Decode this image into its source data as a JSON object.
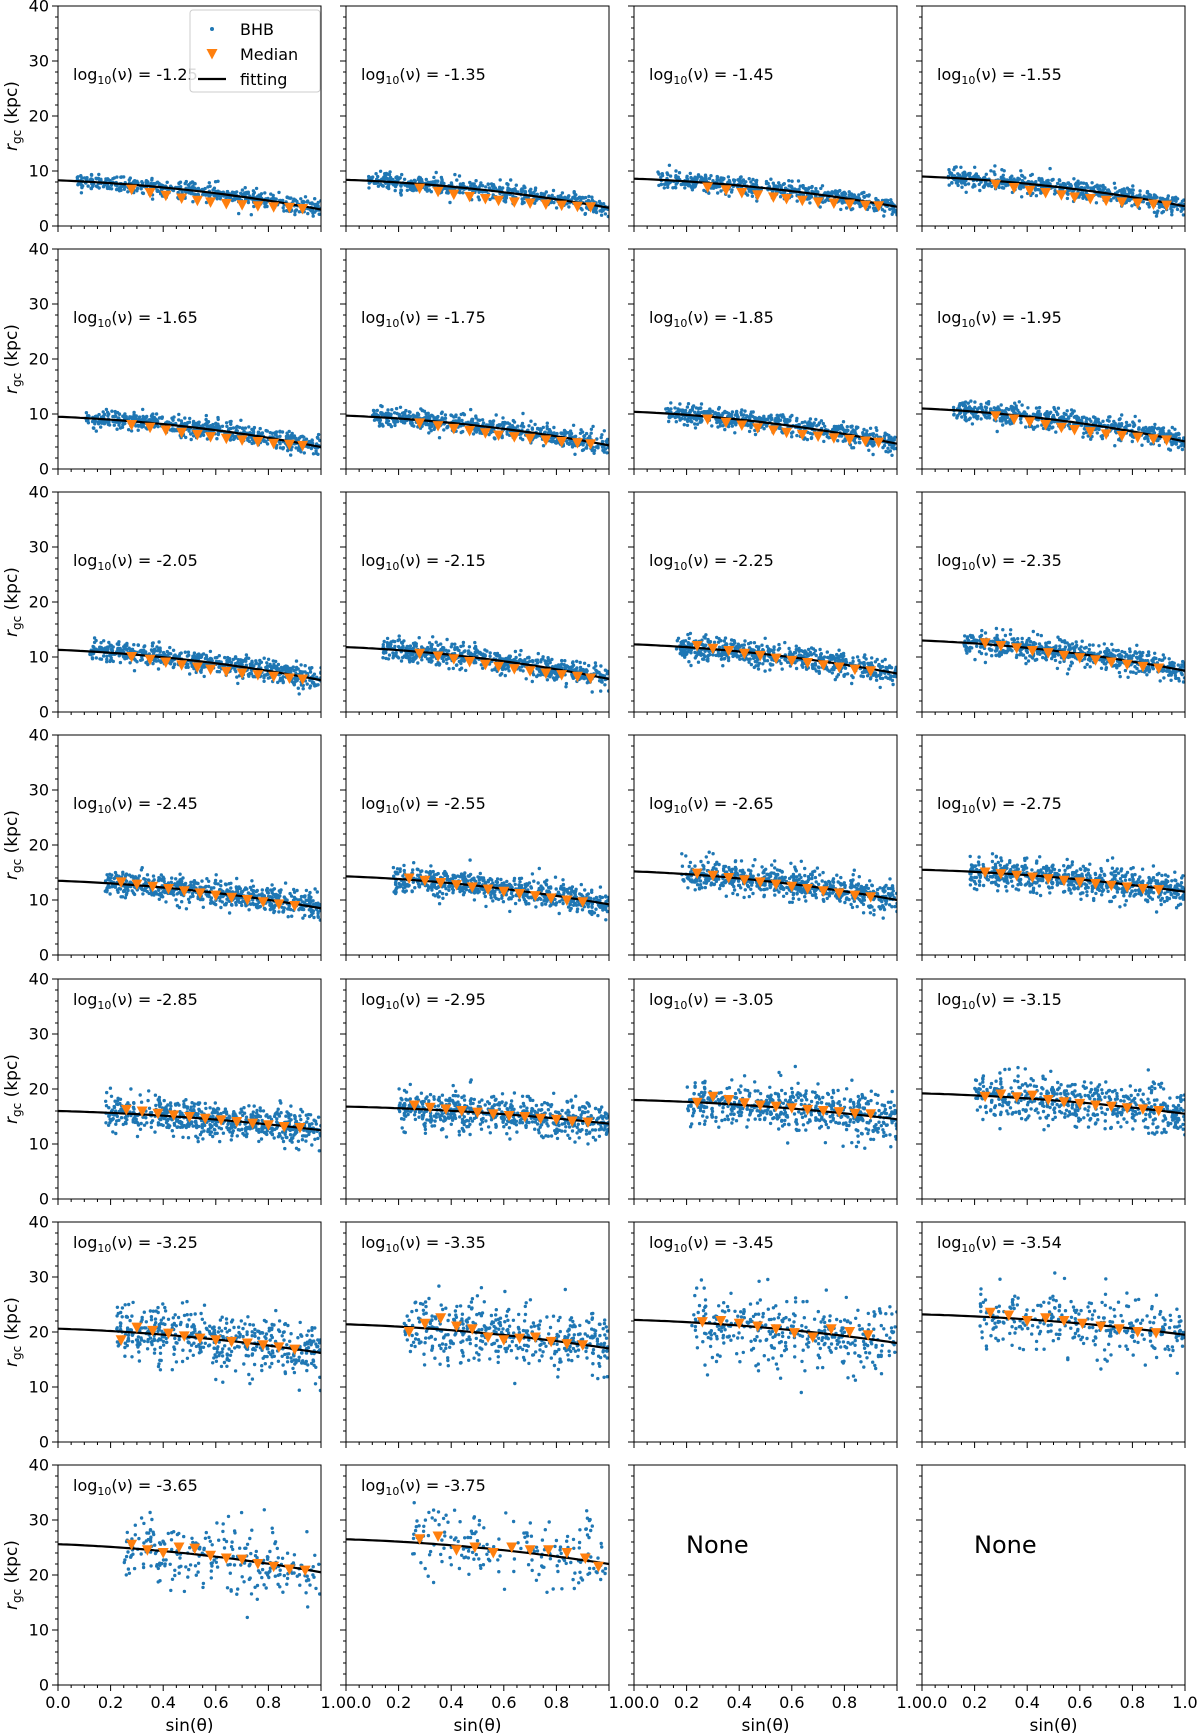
{
  "figure": {
    "x_axis_label": "sin(θ)",
    "y_axis_label": "r_gc (kpc)",
    "annotation_prefix": "log10(ν) = ",
    "colors": {
      "bhb": "#1f77b4",
      "median": "#ff7f0e",
      "fitting": "#000000"
    }
  },
  "legend": {
    "placement": "top-left panel, upper center",
    "entries": [
      {
        "label": "BHB",
        "marker": "dot",
        "color": "#1f77b4"
      },
      {
        "label": "Median",
        "marker": "down-triangle",
        "color": "#ff7f0e"
      },
      {
        "label": "fitting",
        "marker": "line",
        "color": "#000000"
      }
    ]
  },
  "chart_data": {
    "type": "scatter",
    "layout": {
      "rows": 7,
      "cols": 4
    },
    "xlim": [
      0.0,
      1.0
    ],
    "ylim": [
      0,
      40
    ],
    "x_ticks": [
      "0.0",
      "0.2",
      "0.4",
      "0.6",
      "0.8",
      "1.0"
    ],
    "x_tick_labels_last_row": [
      "0.0",
      "0.2",
      "0.4",
      "0.6",
      "0.8",
      "1.00.0",
      "0.2",
      "0.4",
      "0.6",
      "0.8",
      "1.00.0",
      "0.2",
      "0.4",
      "0.6",
      "0.8",
      "1.00.0",
      "0.2",
      "0.4",
      "0.6",
      "0.8",
      "1.0"
    ],
    "y_ticks": [
      "0",
      "10",
      "20",
      "30",
      "40"
    ],
    "xlabel": "sin(θ)",
    "ylabel": "r_gc (kpc)",
    "series_names": [
      "BHB",
      "Median",
      "fitting"
    ],
    "panels": [
      {
        "label": "-1.25",
        "empty": false,
        "n": 520,
        "xmin": 0.07,
        "spread": 0.75,
        "fit": [
          8.3,
          3.0
        ],
        "median_x": [
          0.28,
          0.35,
          0.41,
          0.47,
          0.53,
          0.58,
          0.64,
          0.7,
          0.76,
          0.82,
          0.88,
          0.93
        ],
        "median_y": [
          6.6,
          6.0,
          5.5,
          5.0,
          4.6,
          4.3,
          4.0,
          3.8,
          3.6,
          3.4,
          3.3,
          3.1
        ]
      },
      {
        "label": "-1.35",
        "empty": false,
        "n": 540,
        "xmin": 0.08,
        "spread": 0.75,
        "fit": [
          8.4,
          3.3
        ],
        "median_x": [
          0.28,
          0.35,
          0.41,
          0.47,
          0.53,
          0.58,
          0.64,
          0.7,
          0.76,
          0.82,
          0.88,
          0.93
        ],
        "median_y": [
          6.8,
          6.2,
          5.7,
          5.3,
          4.9,
          4.6,
          4.3,
          4.1,
          3.9,
          3.7,
          3.5,
          3.4
        ]
      },
      {
        "label": "-1.45",
        "empty": false,
        "n": 560,
        "xmin": 0.09,
        "spread": 0.8,
        "fit": [
          8.6,
          3.5
        ],
        "median_x": [
          0.28,
          0.35,
          0.41,
          0.47,
          0.53,
          0.58,
          0.64,
          0.7,
          0.76,
          0.82,
          0.88,
          0.93
        ],
        "median_y": [
          7.0,
          6.5,
          6.0,
          5.6,
          5.2,
          4.9,
          4.6,
          4.3,
          4.1,
          3.9,
          3.7,
          3.6
        ]
      },
      {
        "label": "-1.55",
        "empty": false,
        "n": 580,
        "xmin": 0.1,
        "spread": 0.85,
        "fit": [
          9.0,
          3.6
        ],
        "median_x": [
          0.28,
          0.35,
          0.41,
          0.47,
          0.53,
          0.58,
          0.64,
          0.7,
          0.76,
          0.82,
          0.88,
          0.93
        ],
        "median_y": [
          7.5,
          6.9,
          6.4,
          6.0,
          5.6,
          5.2,
          4.9,
          4.6,
          4.3,
          4.1,
          3.9,
          3.7
        ]
      },
      {
        "label": "-1.65",
        "empty": false,
        "n": 580,
        "xmin": 0.1,
        "spread": 0.85,
        "fit": [
          9.5,
          4.0
        ],
        "median_x": [
          0.28,
          0.35,
          0.41,
          0.47,
          0.53,
          0.58,
          0.64,
          0.7,
          0.76,
          0.82,
          0.88,
          0.93
        ],
        "median_y": [
          8.0,
          7.5,
          7.0,
          6.6,
          6.2,
          5.8,
          5.5,
          5.2,
          4.9,
          4.6,
          4.4,
          4.2
        ]
      },
      {
        "label": "-1.75",
        "empty": false,
        "n": 600,
        "xmin": 0.1,
        "spread": 0.9,
        "fit": [
          9.7,
          4.3
        ],
        "median_x": [
          0.28,
          0.35,
          0.41,
          0.47,
          0.53,
          0.58,
          0.64,
          0.7,
          0.76,
          0.82,
          0.88,
          0.93
        ],
        "median_y": [
          8.3,
          7.8,
          7.3,
          6.9,
          6.5,
          6.1,
          5.8,
          5.5,
          5.2,
          4.9,
          4.7,
          4.5
        ]
      },
      {
        "label": "-1.85",
        "empty": false,
        "n": 600,
        "xmin": 0.12,
        "spread": 0.9,
        "fit": [
          10.4,
          4.6
        ],
        "median_x": [
          0.28,
          0.35,
          0.41,
          0.47,
          0.53,
          0.58,
          0.64,
          0.7,
          0.76,
          0.82,
          0.88,
          0.93
        ],
        "median_y": [
          9.0,
          8.4,
          7.9,
          7.4,
          7.0,
          6.6,
          6.2,
          5.9,
          5.6,
          5.3,
          5.0,
          4.8
        ]
      },
      {
        "label": "-1.95",
        "empty": false,
        "n": 600,
        "xmin": 0.12,
        "spread": 0.95,
        "fit": [
          11.0,
          5.0
        ],
        "median_x": [
          0.28,
          0.35,
          0.41,
          0.47,
          0.53,
          0.58,
          0.64,
          0.7,
          0.76,
          0.82,
          0.88,
          0.93
        ],
        "median_y": [
          9.6,
          9.0,
          8.5,
          8.0,
          7.5,
          7.1,
          6.7,
          6.3,
          6.0,
          5.7,
          5.4,
          5.2
        ]
      },
      {
        "label": "-2.05",
        "empty": false,
        "n": 620,
        "xmin": 0.12,
        "spread": 1.0,
        "fit": [
          11.3,
          5.8
        ],
        "median_x": [
          0.28,
          0.35,
          0.41,
          0.47,
          0.53,
          0.58,
          0.64,
          0.7,
          0.76,
          0.82,
          0.88,
          0.93
        ],
        "median_y": [
          10.0,
          9.5,
          9.0,
          8.5,
          8.1,
          7.7,
          7.3,
          7.0,
          6.7,
          6.4,
          6.1,
          5.9
        ]
      },
      {
        "label": "-2.15",
        "empty": false,
        "n": 620,
        "xmin": 0.14,
        "spread": 1.0,
        "fit": [
          11.8,
          6.0
        ],
        "median_x": [
          0.28,
          0.35,
          0.41,
          0.47,
          0.53,
          0.58,
          0.64,
          0.7,
          0.76,
          0.82,
          0.88,
          0.93
        ],
        "median_y": [
          10.6,
          10.1,
          9.6,
          9.1,
          8.6,
          8.2,
          7.8,
          7.4,
          7.0,
          6.7,
          6.4,
          6.1
        ]
      },
      {
        "label": "-2.25",
        "empty": false,
        "n": 620,
        "xmin": 0.16,
        "spread": 1.05,
        "fit": [
          12.3,
          7.0
        ],
        "median_x": [
          0.24,
          0.3,
          0.36,
          0.42,
          0.48,
          0.54,
          0.6,
          0.66,
          0.72,
          0.78,
          0.84,
          0.9
        ],
        "median_y": [
          12.0,
          11.5,
          11.1,
          10.6,
          10.2,
          9.7,
          9.3,
          8.9,
          8.5,
          8.1,
          7.7,
          7.4
        ]
      },
      {
        "label": "-2.35",
        "empty": false,
        "n": 620,
        "xmin": 0.16,
        "spread": 1.1,
        "fit": [
          13.0,
          7.5
        ],
        "median_x": [
          0.24,
          0.3,
          0.36,
          0.42,
          0.48,
          0.54,
          0.6,
          0.66,
          0.72,
          0.78,
          0.84,
          0.9
        ],
        "median_y": [
          12.5,
          12.0,
          11.6,
          11.1,
          10.7,
          10.2,
          9.8,
          9.4,
          9.0,
          8.6,
          8.2,
          7.9
        ]
      },
      {
        "label": "-2.45",
        "empty": false,
        "n": 640,
        "xmin": 0.18,
        "spread": 1.2,
        "fit": [
          13.5,
          8.5
        ],
        "median_x": [
          0.24,
          0.3,
          0.36,
          0.42,
          0.48,
          0.54,
          0.6,
          0.66,
          0.72,
          0.78,
          0.84,
          0.9
        ],
        "median_y": [
          13.2,
          12.8,
          12.4,
          12.0,
          11.6,
          11.2,
          10.8,
          10.4,
          10.0,
          9.6,
          9.2,
          8.9
        ]
      },
      {
        "label": "-2.55",
        "empty": false,
        "n": 640,
        "xmin": 0.18,
        "spread": 1.2,
        "fit": [
          14.3,
          9.2
        ],
        "median_x": [
          0.24,
          0.3,
          0.36,
          0.42,
          0.48,
          0.54,
          0.6,
          0.66,
          0.72,
          0.78,
          0.84,
          0.9
        ],
        "median_y": [
          13.9,
          13.5,
          13.1,
          12.7,
          12.3,
          11.9,
          11.5,
          11.1,
          10.7,
          10.3,
          9.9,
          9.6
        ]
      },
      {
        "label": "-2.65",
        "empty": false,
        "n": 660,
        "xmin": 0.18,
        "spread": 1.3,
        "fit": [
          15.2,
          10.0
        ],
        "median_x": [
          0.24,
          0.3,
          0.36,
          0.42,
          0.48,
          0.54,
          0.6,
          0.66,
          0.72,
          0.78,
          0.84,
          0.9
        ],
        "median_y": [
          14.8,
          14.4,
          14.0,
          13.6,
          13.2,
          12.8,
          12.4,
          12.0,
          11.6,
          11.2,
          10.8,
          10.5
        ]
      },
      {
        "label": "-2.75",
        "empty": false,
        "n": 680,
        "xmin": 0.18,
        "spread": 1.4,
        "fit": [
          15.5,
          11.5
        ],
        "median_x": [
          0.24,
          0.3,
          0.36,
          0.42,
          0.48,
          0.54,
          0.6,
          0.66,
          0.72,
          0.78,
          0.84,
          0.9
        ],
        "median_y": [
          15.0,
          14.7,
          14.4,
          14.1,
          13.8,
          13.5,
          13.2,
          12.9,
          12.6,
          12.3,
          12.0,
          11.8
        ]
      },
      {
        "label": "-2.85",
        "empty": false,
        "n": 640,
        "xmin": 0.18,
        "spread": 1.6,
        "fit": [
          16.0,
          12.5
        ],
        "median_x": [
          0.26,
          0.32,
          0.38,
          0.44,
          0.5,
          0.56,
          0.62,
          0.68,
          0.74,
          0.8,
          0.86,
          0.92
        ],
        "median_y": [
          16.2,
          15.9,
          15.5,
          15.2,
          14.9,
          14.6,
          14.3,
          14.0,
          13.7,
          13.4,
          13.1,
          12.9
        ]
      },
      {
        "label": "-2.95",
        "empty": false,
        "n": 600,
        "xmin": 0.2,
        "spread": 1.8,
        "fit": [
          16.8,
          13.7
        ],
        "median_x": [
          0.26,
          0.32,
          0.38,
          0.44,
          0.5,
          0.56,
          0.62,
          0.68,
          0.74,
          0.8,
          0.86,
          0.92
        ],
        "median_y": [
          17.0,
          16.6,
          16.3,
          16.0,
          15.7,
          15.4,
          15.1,
          14.9,
          14.6,
          14.4,
          14.1,
          13.9
        ]
      },
      {
        "label": "-3.05",
        "empty": false,
        "n": 560,
        "xmin": 0.2,
        "spread": 2.0,
        "fit": [
          18.0,
          14.5
        ],
        "median_x": [
          0.24,
          0.3,
          0.36,
          0.42,
          0.48,
          0.54,
          0.6,
          0.66,
          0.72,
          0.78,
          0.84,
          0.9
        ],
        "median_y": [
          17.5,
          18.6,
          18.0,
          17.4,
          17.0,
          16.8,
          16.5,
          16.2,
          16.0,
          15.8,
          15.5,
          15.4
        ]
      },
      {
        "label": "-3.15",
        "empty": false,
        "n": 520,
        "xmin": 0.2,
        "spread": 2.2,
        "fit": [
          19.2,
          15.5
        ],
        "median_x": [
          0.24,
          0.3,
          0.36,
          0.42,
          0.48,
          0.54,
          0.6,
          0.66,
          0.72,
          0.78,
          0.84,
          0.9
        ],
        "median_y": [
          18.6,
          19.0,
          18.5,
          18.8,
          18.0,
          17.6,
          17.3,
          17.0,
          16.8,
          16.5,
          16.3,
          16.0
        ]
      },
      {
        "label": "-3.25",
        "empty": false,
        "n": 500,
        "xmin": 0.22,
        "spread": 2.6,
        "fit": [
          20.6,
          16.2
        ],
        "median_x": [
          0.24,
          0.3,
          0.36,
          0.42,
          0.48,
          0.54,
          0.6,
          0.66,
          0.72,
          0.78,
          0.84,
          0.9
        ],
        "median_y": [
          18.5,
          20.8,
          20.2,
          19.7,
          19.2,
          18.8,
          18.5,
          18.2,
          17.9,
          17.6,
          17.2,
          16.8
        ]
      },
      {
        "label": "-3.35",
        "empty": false,
        "n": 440,
        "xmin": 0.22,
        "spread": 2.8,
        "fit": [
          21.4,
          17.0
        ],
        "median_x": [
          0.24,
          0.3,
          0.36,
          0.42,
          0.48,
          0.54,
          0.6,
          0.66,
          0.72,
          0.78,
          0.84,
          0.9
        ],
        "median_y": [
          20.0,
          21.5,
          22.5,
          21.0,
          20.5,
          19.0,
          18.5,
          18.8,
          19.0,
          18.2,
          17.8,
          17.6
        ]
      },
      {
        "label": "-3.45",
        "empty": false,
        "n": 360,
        "xmin": 0.22,
        "spread": 3.0,
        "fit": [
          22.2,
          18.0
        ],
        "median_x": [
          0.26,
          0.33,
          0.4,
          0.47,
          0.54,
          0.61,
          0.68,
          0.75,
          0.82,
          0.89
        ],
        "median_y": [
          21.8,
          22.0,
          21.5,
          21.0,
          20.5,
          19.8,
          19.0,
          20.5,
          20.0,
          19.4
        ]
      },
      {
        "label": "-3.54",
        "empty": false,
        "n": 300,
        "xmin": 0.22,
        "spread": 3.0,
        "fit": [
          23.2,
          19.5
        ],
        "median_x": [
          0.26,
          0.33,
          0.4,
          0.47,
          0.54,
          0.61,
          0.68,
          0.75,
          0.82,
          0.89
        ],
        "median_y": [
          23.5,
          23.0,
          22.0,
          22.5,
          22.0,
          21.5,
          21.0,
          20.5,
          20.0,
          19.8
        ]
      },
      {
        "label": "-3.65",
        "empty": false,
        "n": 260,
        "xmin": 0.25,
        "spread": 3.0,
        "fit": [
          25.6,
          20.5
        ],
        "median_x": [
          0.28,
          0.34,
          0.4,
          0.46,
          0.52,
          0.58,
          0.64,
          0.7,
          0.76,
          0.82,
          0.88,
          0.94
        ],
        "median_y": [
          25.5,
          24.5,
          24.0,
          25.0,
          24.8,
          23.5,
          23.0,
          22.8,
          22.0,
          21.5,
          21.0,
          20.8
        ]
      },
      {
        "label": "-3.75",
        "empty": false,
        "n": 200,
        "xmin": 0.25,
        "spread": 3.2,
        "fit": [
          26.5,
          22.0
        ],
        "median_x": [
          0.28,
          0.35,
          0.42,
          0.49,
          0.56,
          0.63,
          0.7,
          0.77,
          0.84,
          0.91,
          0.96
        ],
        "median_y": [
          26.5,
          27.0,
          24.5,
          25.0,
          24.0,
          25.0,
          24.5,
          24.5,
          24.0,
          23.0,
          21.5
        ]
      },
      {
        "label": "None",
        "empty": true
      },
      {
        "label": "None",
        "empty": true
      }
    ]
  }
}
